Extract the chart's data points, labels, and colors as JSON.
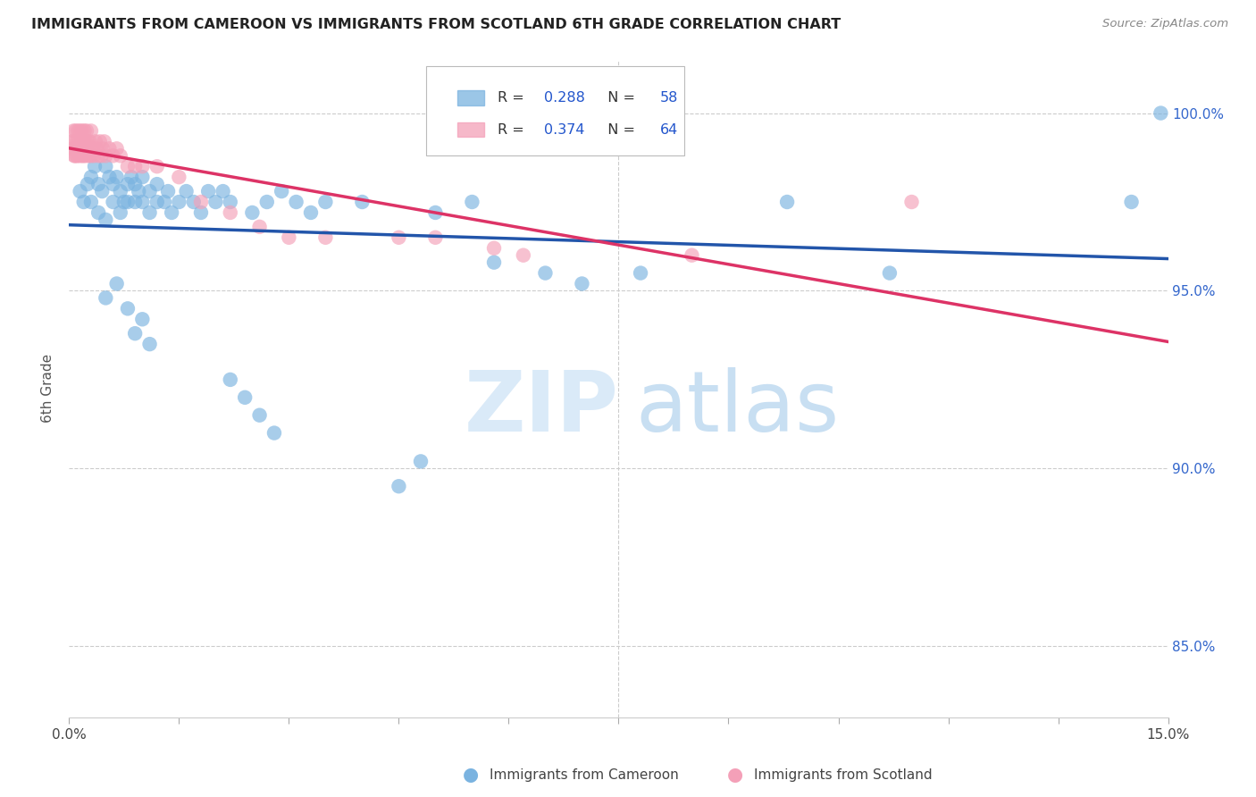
{
  "title": "IMMIGRANTS FROM CAMEROON VS IMMIGRANTS FROM SCOTLAND 6TH GRADE CORRELATION CHART",
  "source": "Source: ZipAtlas.com",
  "ylabel": "6th Grade",
  "xmin": 0.0,
  "xmax": 15.0,
  "ymin": 83.0,
  "ymax": 101.5,
  "yticks": [
    85.0,
    90.0,
    95.0,
    100.0
  ],
  "ytick_labels": [
    "85.0%",
    "90.0%",
    "95.0%",
    "100.0%"
  ],
  "R1": "0.288",
  "N1": "58",
  "R2": "0.374",
  "N2": "64",
  "series1_color": "#7ab3e0",
  "series2_color": "#f4a0b8",
  "line1_color": "#2255aa",
  "line2_color": "#dd3366",
  "legend_bottom_label1": "Immigrants from Cameroon",
  "legend_bottom_label2": "Immigrants from Scotland",
  "cameroon_x": [
    0.15,
    0.2,
    0.25,
    0.3,
    0.3,
    0.35,
    0.4,
    0.4,
    0.45,
    0.5,
    0.5,
    0.55,
    0.6,
    0.6,
    0.65,
    0.7,
    0.7,
    0.75,
    0.8,
    0.8,
    0.85,
    0.9,
    0.9,
    0.95,
    1.0,
    1.0,
    1.1,
    1.1,
    1.2,
    1.2,
    1.3,
    1.35,
    1.4,
    1.5,
    1.6,
    1.7,
    1.8,
    1.9,
    2.0,
    2.1,
    2.2,
    2.5,
    2.7,
    2.9,
    3.1,
    3.3,
    3.5,
    4.0,
    5.0,
    5.5,
    5.8,
    6.5,
    7.0,
    7.8,
    9.8,
    11.2,
    14.5,
    14.9
  ],
  "cameroon_y": [
    97.8,
    97.5,
    98.0,
    98.2,
    97.5,
    98.5,
    98.0,
    97.2,
    97.8,
    98.5,
    97.0,
    98.2,
    97.5,
    98.0,
    98.2,
    97.8,
    97.2,
    97.5,
    98.0,
    97.5,
    98.2,
    97.5,
    98.0,
    97.8,
    97.5,
    98.2,
    97.8,
    97.2,
    97.5,
    98.0,
    97.5,
    97.8,
    97.2,
    97.5,
    97.8,
    97.5,
    97.2,
    97.8,
    97.5,
    97.8,
    97.5,
    97.2,
    97.5,
    97.8,
    97.5,
    97.2,
    97.5,
    97.5,
    97.2,
    97.5,
    95.8,
    95.5,
    95.2,
    95.5,
    97.5,
    95.5,
    97.5,
    100.0
  ],
  "cameroon_y_outliers": [
    94.8,
    95.2,
    94.5,
    93.8,
    94.2,
    93.5,
    92.5,
    92.0,
    91.5,
    91.0,
    90.2,
    89.5
  ],
  "cameroon_x_outliers": [
    0.5,
    0.65,
    0.8,
    0.9,
    1.0,
    1.1,
    2.2,
    2.4,
    2.6,
    2.8,
    4.8,
    4.5
  ],
  "scotland_x": [
    0.04,
    0.05,
    0.06,
    0.07,
    0.08,
    0.08,
    0.09,
    0.1,
    0.1,
    0.11,
    0.12,
    0.12,
    0.13,
    0.14,
    0.15,
    0.15,
    0.16,
    0.17,
    0.18,
    0.18,
    0.19,
    0.2,
    0.2,
    0.21,
    0.22,
    0.22,
    0.23,
    0.24,
    0.25,
    0.25,
    0.27,
    0.28,
    0.3,
    0.3,
    0.32,
    0.34,
    0.36,
    0.38,
    0.4,
    0.42,
    0.44,
    0.46,
    0.48,
    0.5,
    0.55,
    0.6,
    0.65,
    0.7,
    0.8,
    0.9,
    1.0,
    1.2,
    1.5,
    1.8,
    2.2,
    2.6,
    3.0,
    3.5,
    4.5,
    5.0,
    5.8,
    6.2,
    8.5,
    11.5
  ],
  "scotland_y": [
    99.2,
    99.0,
    99.5,
    98.8,
    99.2,
    98.8,
    99.5,
    99.0,
    98.8,
    99.2,
    98.8,
    99.5,
    99.0,
    99.2,
    98.8,
    99.5,
    99.0,
    99.2,
    98.8,
    99.5,
    99.0,
    99.2,
    98.8,
    99.5,
    99.0,
    99.2,
    98.8,
    99.5,
    99.0,
    99.2,
    98.8,
    99.2,
    98.8,
    99.5,
    99.0,
    98.8,
    99.2,
    99.0,
    98.8,
    99.2,
    98.8,
    99.0,
    99.2,
    98.8,
    99.0,
    98.8,
    99.0,
    98.8,
    98.5,
    98.5,
    98.5,
    98.5,
    98.2,
    97.5,
    97.2,
    96.8,
    96.5,
    96.5,
    96.5,
    96.5,
    96.2,
    96.0,
    96.0,
    97.5
  ]
}
